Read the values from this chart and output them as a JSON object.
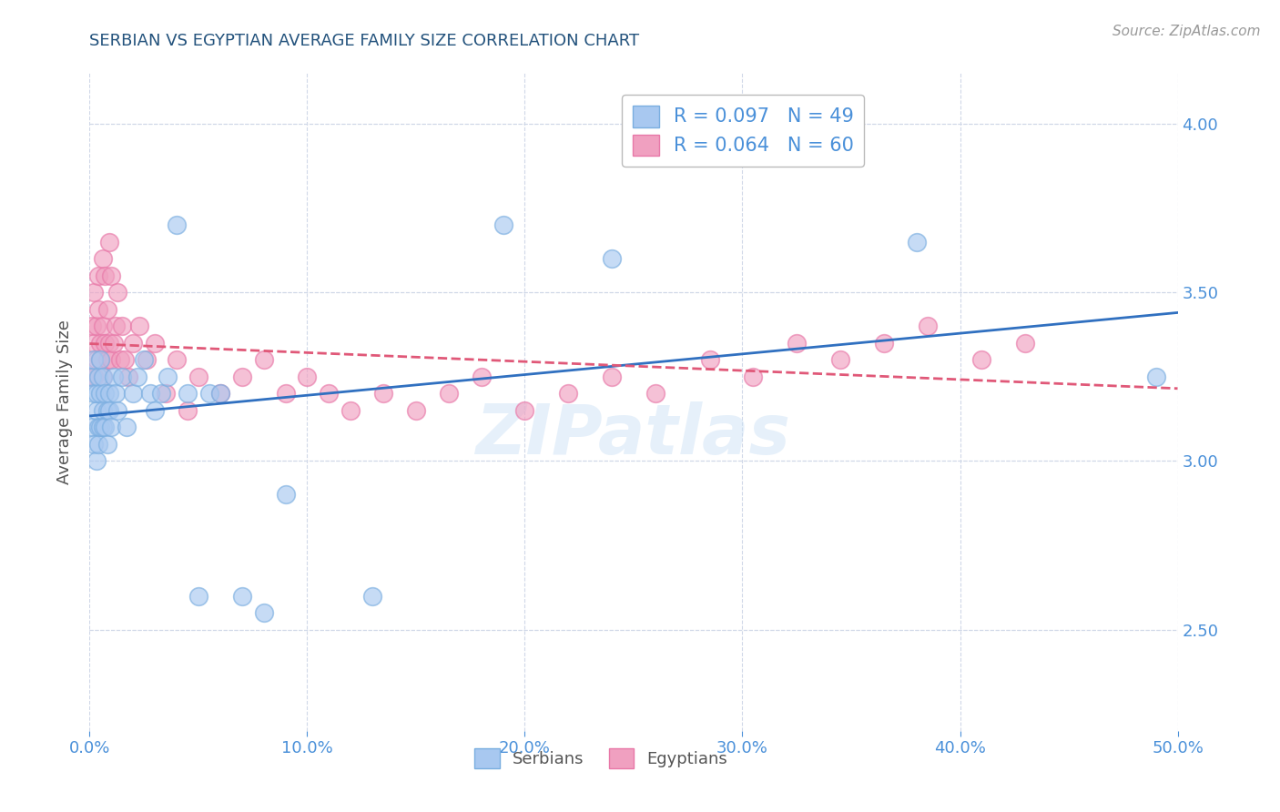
{
  "title": "SERBIAN VS EGYPTIAN AVERAGE FAMILY SIZE CORRELATION CHART",
  "source_text": "Source: ZipAtlas.com",
  "ylabel": "Average Family Size",
  "xlim": [
    0.0,
    0.5
  ],
  "ylim": [
    2.2,
    4.15
  ],
  "yticks": [
    2.5,
    3.0,
    3.5,
    4.0
  ],
  "xticks": [
    0.0,
    0.1,
    0.2,
    0.3,
    0.4,
    0.5
  ],
  "xtick_labels": [
    "0.0%",
    "10.0%",
    "20.0%",
    "30.0%",
    "40.0%",
    "50.0%"
  ],
  "serbian_color": "#a8c8f0",
  "egyptian_color": "#f0a0c0",
  "serbian_edge_color": "#7aaee0",
  "egyptian_edge_color": "#e878a8",
  "serbian_line_color": "#3070c0",
  "egyptian_line_color": "#e05878",
  "legend_serbian_R": "R = 0.097",
  "legend_serbian_N": "N = 49",
  "legend_egyptian_R": "R = 0.064",
  "legend_egyptian_N": "N = 60",
  "title_color": "#23527c",
  "axis_color": "#4a90d9",
  "watermark": "ZIPatlas",
  "grid_color": "#d0d8e8",
  "serbian_x": [
    0.001,
    0.001,
    0.002,
    0.002,
    0.002,
    0.003,
    0.003,
    0.003,
    0.004,
    0.004,
    0.004,
    0.005,
    0.005,
    0.005,
    0.006,
    0.006,
    0.006,
    0.007,
    0.007,
    0.008,
    0.008,
    0.009,
    0.009,
    0.01,
    0.011,
    0.012,
    0.013,
    0.015,
    0.017,
    0.02,
    0.022,
    0.025,
    0.028,
    0.03,
    0.033,
    0.036,
    0.04,
    0.045,
    0.05,
    0.055,
    0.06,
    0.07,
    0.08,
    0.09,
    0.13,
    0.19,
    0.24,
    0.38,
    0.49
  ],
  "serbian_y": [
    3.25,
    3.1,
    3.2,
    3.05,
    3.3,
    3.15,
    3.0,
    3.2,
    3.1,
    3.25,
    3.05,
    3.2,
    3.1,
    3.3,
    3.15,
    3.25,
    3.1,
    3.2,
    3.1,
    3.15,
    3.05,
    3.2,
    3.15,
    3.1,
    3.25,
    3.2,
    3.15,
    3.25,
    3.1,
    3.2,
    3.25,
    3.3,
    3.2,
    3.15,
    3.2,
    3.25,
    3.7,
    3.2,
    2.6,
    3.2,
    3.2,
    2.6,
    2.55,
    2.9,
    2.6,
    3.7,
    3.6,
    3.65,
    3.25
  ],
  "egyptian_x": [
    0.001,
    0.001,
    0.002,
    0.002,
    0.002,
    0.003,
    0.003,
    0.004,
    0.004,
    0.005,
    0.005,
    0.006,
    0.006,
    0.006,
    0.007,
    0.007,
    0.008,
    0.008,
    0.009,
    0.009,
    0.01,
    0.01,
    0.011,
    0.012,
    0.013,
    0.014,
    0.015,
    0.016,
    0.018,
    0.02,
    0.023,
    0.026,
    0.03,
    0.035,
    0.04,
    0.045,
    0.05,
    0.06,
    0.07,
    0.08,
    0.09,
    0.1,
    0.11,
    0.12,
    0.135,
    0.15,
    0.165,
    0.18,
    0.2,
    0.22,
    0.24,
    0.26,
    0.285,
    0.305,
    0.325,
    0.345,
    0.365,
    0.385,
    0.41,
    0.43
  ],
  "egyptian_y": [
    3.25,
    3.4,
    3.35,
    3.5,
    3.25,
    3.4,
    3.3,
    3.45,
    3.55,
    3.35,
    3.3,
    3.4,
    3.25,
    3.6,
    3.35,
    3.55,
    3.3,
    3.45,
    3.65,
    3.35,
    3.3,
    3.55,
    3.35,
    3.4,
    3.5,
    3.3,
    3.4,
    3.3,
    3.25,
    3.35,
    3.4,
    3.3,
    3.35,
    3.2,
    3.3,
    3.15,
    3.25,
    3.2,
    3.25,
    3.3,
    3.2,
    3.25,
    3.2,
    3.15,
    3.2,
    3.15,
    3.2,
    3.25,
    3.15,
    3.2,
    3.25,
    3.2,
    3.3,
    3.25,
    3.35,
    3.3,
    3.35,
    3.4,
    3.3,
    3.35
  ]
}
